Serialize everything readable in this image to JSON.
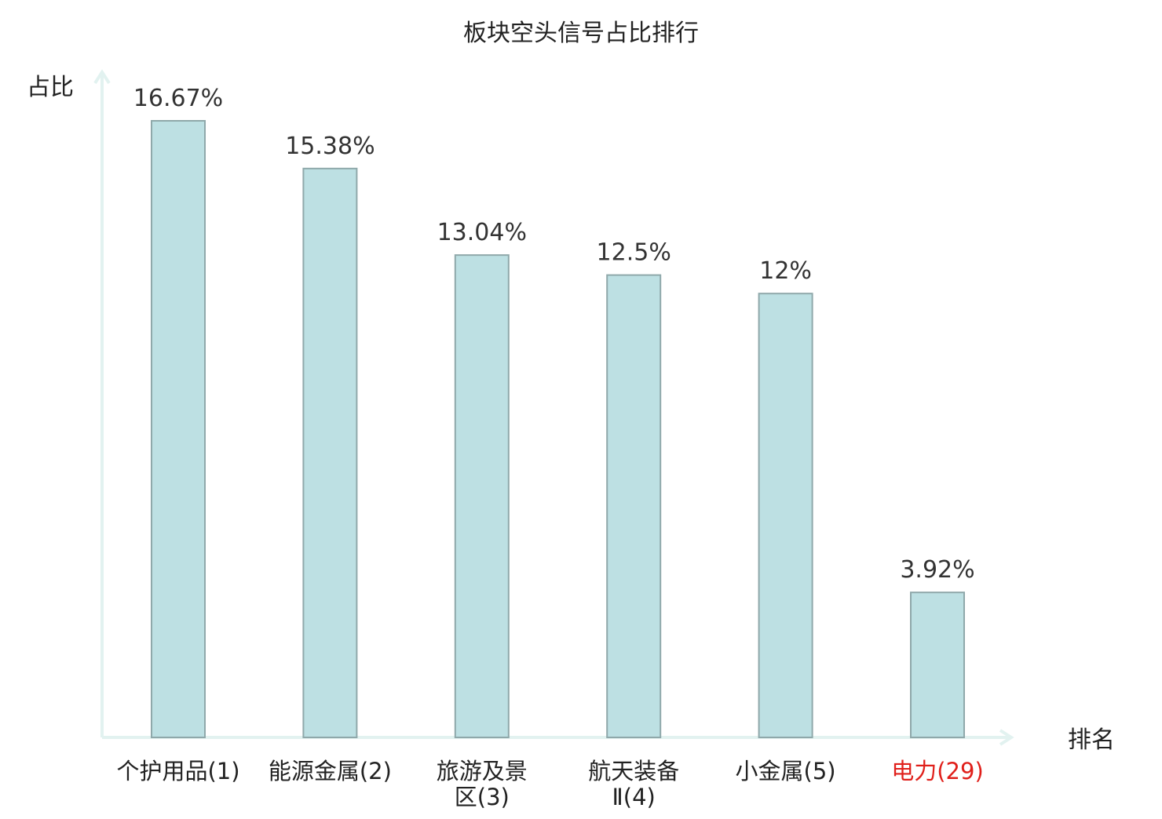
{
  "chart_data": {
    "type": "bar",
    "title": "板块空头信号占比排行",
    "ylabel": "占比",
    "xlabel": "排名",
    "categories": [
      {
        "lines": [
          "个护用品(1)"
        ],
        "highlight": false
      },
      {
        "lines": [
          "能源金属(2)"
        ],
        "highlight": false
      },
      {
        "lines": [
          "旅游及景",
          "区(3)"
        ],
        "highlight": false
      },
      {
        "lines": [
          "航天装备",
          "Ⅱ(4)"
        ],
        "highlight": false
      },
      {
        "lines": [
          "小金属(5)"
        ],
        "highlight": false
      },
      {
        "lines": [
          "电力(29)"
        ],
        "highlight": true
      }
    ],
    "values": [
      16.67,
      15.38,
      13.04,
      12.5,
      12,
      3.92
    ],
    "value_labels": [
      "16.67%",
      "15.38%",
      "13.04%",
      "12.5%",
      "12%",
      "3.92%"
    ],
    "ylim": [
      0,
      16.67
    ],
    "grid": false,
    "colors": {
      "bar_fill": "#bde0e3",
      "bar_stroke": "#8fa8aa",
      "axis": "#e2f2f0",
      "text": "#222222",
      "highlight_text": "#e0201b"
    }
  }
}
